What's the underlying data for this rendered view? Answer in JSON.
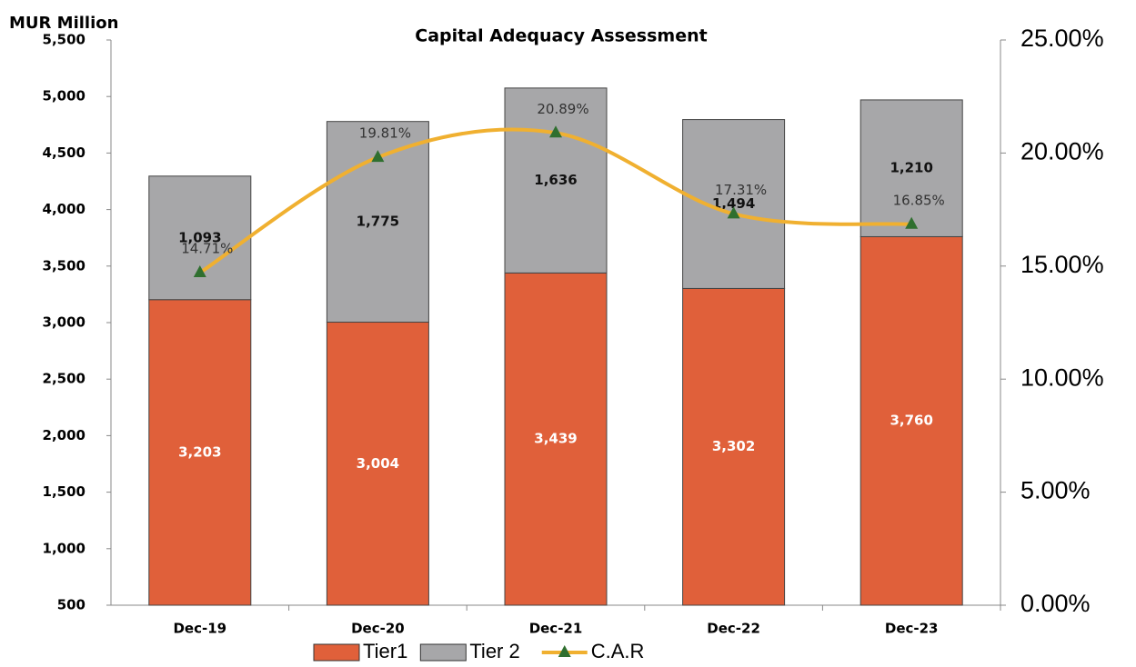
{
  "chart_data": {
    "type": "bar",
    "stacked": true,
    "title": "Capital Adequacy Assessment",
    "ylabel": "MUR Million",
    "categories": [
      "Dec-19",
      "Dec-20",
      "Dec-21",
      "Dec-22",
      "Dec-23"
    ],
    "series": [
      {
        "name": "Tier1",
        "color": "#e0603a",
        "type": "bar",
        "values": [
          3203,
          3004,
          3439,
          3302,
          3760
        ],
        "value_labels": [
          "3,203",
          "3,004",
          "3,439",
          "3,302",
          "3,760"
        ]
      },
      {
        "name": "Tier 2",
        "color": "#a7a7a9",
        "type": "bar",
        "values": [
          1093,
          1775,
          1636,
          1494,
          1210
        ],
        "value_labels": [
          "1,093",
          "1,775",
          "1,636",
          "1,494",
          "1,210"
        ]
      },
      {
        "name": "C.A.R",
        "color": "#f0b030",
        "marker_color": "#2f6f2f",
        "type": "line",
        "axis": "y2",
        "values": [
          14.71,
          19.81,
          20.89,
          17.31,
          16.85
        ],
        "value_labels": [
          "14.71%",
          "19.81%",
          "20.89%",
          "17.31%",
          "16.85%"
        ]
      }
    ],
    "ylim": [
      500,
      5500
    ],
    "yticks": [
      500,
      {
        "value": 1000,
        "label": "1,000"
      },
      {
        "value": 1500,
        "label": "1,500"
      },
      {
        "value": 2000,
        "label": "2,000"
      },
      {
        "value": 2500,
        "label": "2,500"
      },
      {
        "value": 3000,
        "label": "3,000"
      },
      {
        "value": 3500,
        "label": "3,500"
      },
      {
        "value": 4000,
        "label": "4,000"
      },
      {
        "value": 4500,
        "label": "4,500"
      },
      {
        "value": 5000,
        "label": "5,000"
      },
      {
        "value": 5500,
        "label": "5,500"
      }
    ],
    "y2lim": [
      0,
      25
    ],
    "y2ticks": [
      {
        "value": 0,
        "label": "0.00%"
      },
      {
        "value": 5,
        "label": "5.00%"
      },
      {
        "value": 10,
        "label": "10.00%"
      },
      {
        "value": 15,
        "label": "15.00%"
      },
      {
        "value": 20,
        "label": "20.00%"
      },
      {
        "value": 25,
        "label": "25.00%"
      }
    ],
    "grid": false,
    "legend": "bottom"
  }
}
